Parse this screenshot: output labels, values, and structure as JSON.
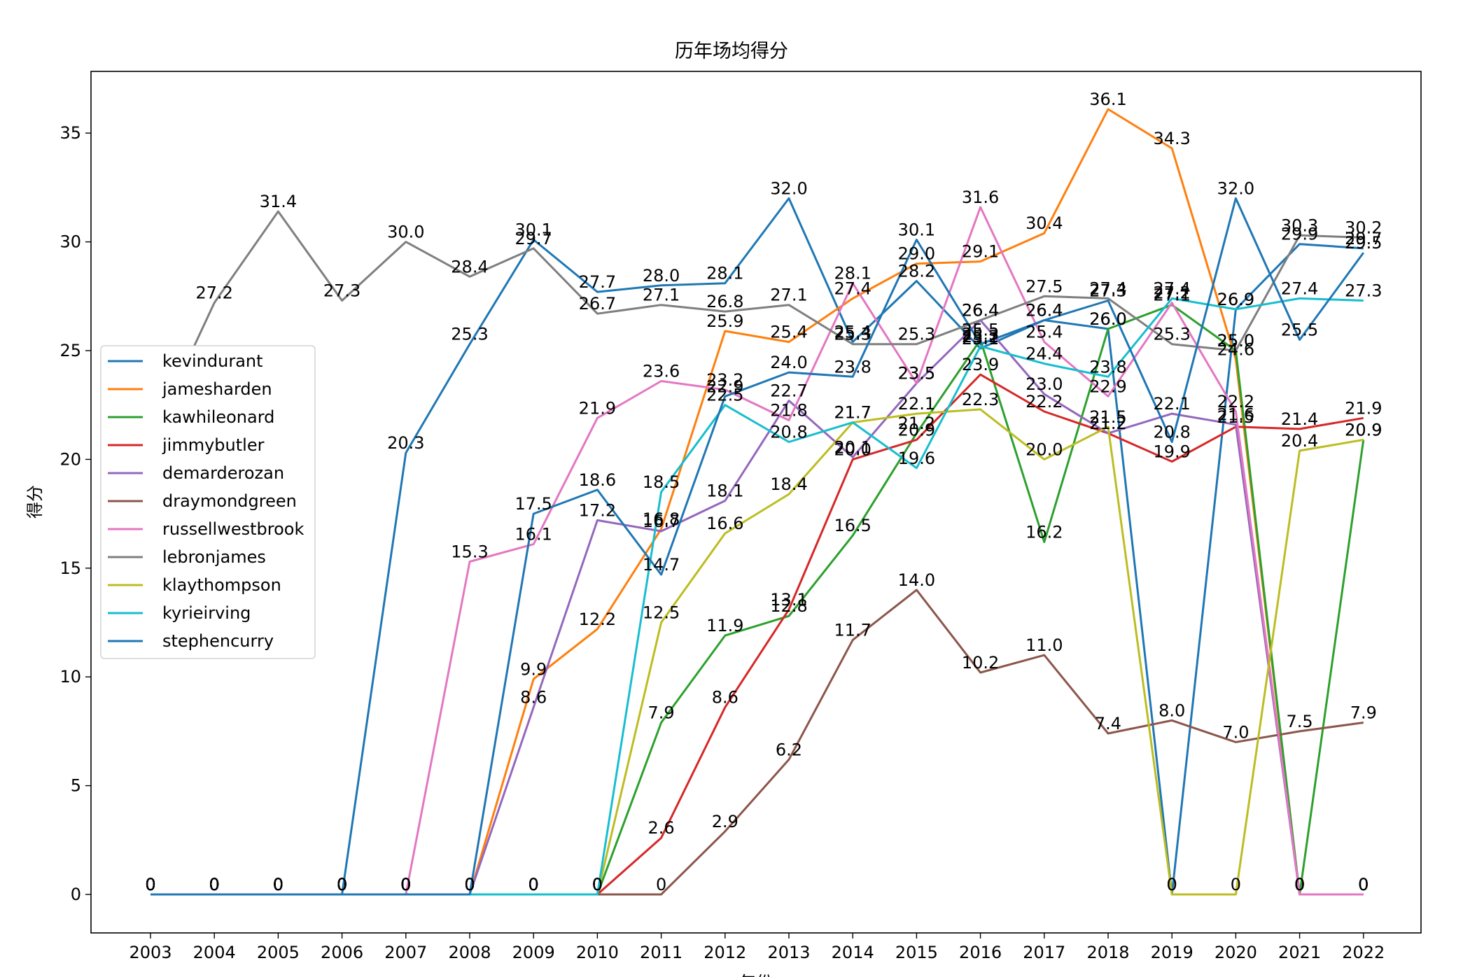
{
  "chart_data": {
    "type": "line",
    "title": "历年场均得分",
    "xlabel": "年份",
    "ylabel": "得分",
    "x": [
      2003,
      2004,
      2005,
      2006,
      2007,
      2008,
      2009,
      2010,
      2011,
      2012,
      2013,
      2014,
      2015,
      2016,
      2017,
      2018,
      2019,
      2020,
      2021,
      2022
    ],
    "ylim": [
      -1.8,
      37.8
    ],
    "yticks": [
      0,
      5,
      10,
      15,
      20,
      25,
      30,
      35
    ],
    "grid": false,
    "legend_position": "center-left",
    "series": [
      {
        "name": "kevindurant",
        "color": "#1f77b4",
        "values": [
          0,
          0,
          0,
          0,
          20.3,
          25.3,
          30.1,
          27.7,
          28.0,
          28.1,
          32.0,
          25.4,
          28.2,
          25.1,
          26.4,
          26.0,
          0,
          26.9,
          29.9,
          29.7
        ]
      },
      {
        "name": "jamesharden",
        "color": "#ff7f0e",
        "values": [
          0,
          0,
          0,
          0,
          0,
          0,
          9.9,
          12.2,
          16.8,
          25.9,
          25.4,
          27.4,
          29.0,
          29.1,
          30.4,
          36.1,
          34.3,
          24.6,
          0,
          0
        ]
      },
      {
        "name": "kawhileonard",
        "color": "#2ca02c",
        "values": [
          0,
          0,
          0,
          0,
          0,
          0,
          0,
          0,
          7.9,
          11.9,
          12.8,
          16.5,
          21.2,
          25.5,
          16.2,
          26.0,
          27.1,
          25.0,
          0,
          20.9
        ]
      },
      {
        "name": "jimmybutler",
        "color": "#d62728",
        "values": [
          0,
          0,
          0,
          0,
          0,
          0,
          0,
          0,
          2.6,
          8.6,
          13.1,
          20.0,
          20.9,
          23.9,
          22.2,
          21.2,
          19.9,
          21.5,
          21.4,
          21.9
        ]
      },
      {
        "name": "demarderozan",
        "color": "#9467bd",
        "values": [
          0,
          0,
          0,
          0,
          0,
          0,
          8.6,
          17.2,
          16.7,
          18.1,
          22.7,
          20.1,
          23.5,
          26.4,
          23.0,
          21.2,
          22.1,
          21.6,
          0,
          0
        ]
      },
      {
        "name": "draymondgreen",
        "color": "#8c564b",
        "values": [
          0,
          0,
          0,
          0,
          0,
          0,
          0,
          0,
          0,
          2.9,
          6.2,
          11.7,
          14.0,
          10.2,
          11.0,
          7.4,
          8.0,
          7.0,
          7.5,
          7.9
        ]
      },
      {
        "name": "russellwestbrook",
        "color": "#e377c2",
        "values": [
          0,
          0,
          0,
          0,
          0,
          15.3,
          16.1,
          21.9,
          23.6,
          23.2,
          21.8,
          28.1,
          23.5,
          31.6,
          25.4,
          22.9,
          27.2,
          22.2,
          0,
          0
        ]
      },
      {
        "name": "lebronjames",
        "color": "#7f7f7f",
        "values": [
          20.9,
          27.2,
          31.4,
          27.3,
          30.0,
          28.4,
          29.7,
          26.7,
          27.1,
          26.8,
          27.1,
          25.3,
          25.3,
          26.4,
          27.5,
          27.4,
          25.3,
          25.0,
          30.3,
          30.2
        ]
      },
      {
        "name": "klaythompson",
        "color": "#bcbd22",
        "values": [
          0,
          0,
          0,
          0,
          0,
          0,
          0,
          0,
          12.5,
          16.6,
          18.4,
          21.7,
          22.1,
          22.3,
          20.0,
          21.5,
          0,
          0,
          20.4,
          20.9
        ]
      },
      {
        "name": "kyrieirving",
        "color": "#17becf",
        "values": [
          0,
          0,
          0,
          0,
          0,
          0,
          0,
          0,
          18.5,
          22.5,
          20.8,
          21.7,
          19.6,
          25.2,
          24.4,
          23.8,
          27.4,
          26.9,
          27.4,
          27.3
        ]
      },
      {
        "name": "stephencurry",
        "color": "#1f77b4",
        "values": [
          0,
          0,
          0,
          0,
          0,
          0,
          17.5,
          18.6,
          14.7,
          22.9,
          24.0,
          23.8,
          30.1,
          25.3,
          26.4,
          27.3,
          20.8,
          32.0,
          25.5,
          29.5
        ]
      }
    ]
  }
}
